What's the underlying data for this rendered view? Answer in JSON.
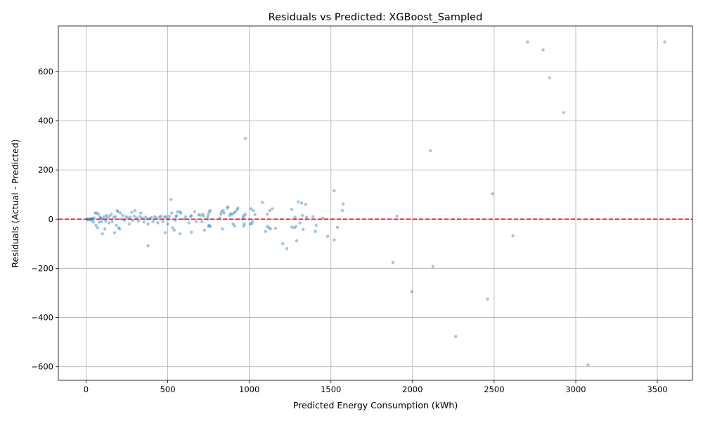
{
  "chart_data": {
    "type": "scatter",
    "title": "Residuals vs Predicted: XGBoost_Sampled",
    "xlabel": "Predicted Energy Consumption (kWh)",
    "ylabel": "Residuals (Actual - Predicted)",
    "xlim": [
      -170,
      3715
    ],
    "ylim": [
      -655,
      785
    ],
    "xticks": [
      0,
      500,
      1000,
      1500,
      2000,
      2500,
      3000,
      3500
    ],
    "yticks": [
      -600,
      -400,
      -200,
      0,
      200,
      400,
      600
    ],
    "xtick_labels": [
      "0",
      "500",
      "1000",
      "1500",
      "2000",
      "2500",
      "3000",
      "3500"
    ],
    "ytick_labels": [
      "−600",
      "−400",
      "−200",
      "0",
      "200",
      "400",
      "600"
    ],
    "grid": true,
    "reference_line": {
      "y": 0,
      "color": "#ff0000",
      "style": "dashed"
    },
    "marker_color": "#1f77b4",
    "points": [
      [
        3545,
        720
      ],
      [
        2705,
        720
      ],
      [
        2800,
        688
      ],
      [
        2840,
        574
      ],
      [
        2925,
        433
      ],
      [
        2110,
        278
      ],
      [
        975,
        328
      ],
      [
        2490,
        103
      ],
      [
        1520,
        115
      ],
      [
        2615,
        -68
      ],
      [
        1905,
        12
      ],
      [
        1575,
        62
      ],
      [
        1570,
        35
      ],
      [
        1880,
        -176
      ],
      [
        2125,
        -193
      ],
      [
        1995,
        -295
      ],
      [
        2460,
        -325
      ],
      [
        2265,
        -477
      ],
      [
        3075,
        -592
      ],
      [
        1480,
        -70
      ],
      [
        1520,
        -85
      ],
      [
        1540,
        -33
      ],
      [
        1290,
        -88
      ],
      [
        1230,
        -120
      ],
      [
        1205,
        -100
      ],
      [
        380,
        -108
      ],
      [
        100,
        -60
      ],
      [
        175,
        -55
      ],
      [
        575,
        -60
      ],
      [
        645,
        -53
      ],
      [
        485,
        -55
      ],
      [
        1300,
        70
      ],
      [
        1320,
        65
      ],
      [
        1345,
        60
      ],
      [
        1325,
        15
      ],
      [
        1275,
        -35
      ],
      [
        1260,
        -32
      ],
      [
        1285,
        -30
      ],
      [
        1310,
        -15
      ],
      [
        1330,
        -42
      ],
      [
        1405,
        -50
      ],
      [
        1410,
        -25
      ],
      [
        1450,
        5
      ],
      [
        1390,
        10
      ],
      [
        1350,
        8
      ],
      [
        1260,
        40
      ],
      [
        1280,
        8
      ],
      [
        1160,
        -38
      ],
      [
        1140,
        42
      ],
      [
        1125,
        35
      ],
      [
        1110,
        20
      ],
      [
        1100,
        -50
      ],
      [
        1080,
        68
      ],
      [
        1110,
        -30
      ],
      [
        1120,
        -35
      ],
      [
        1130,
        -40
      ],
      [
        1035,
        18
      ],
      [
        1025,
        35
      ],
      [
        1010,
        42
      ],
      [
        1015,
        -18
      ],
      [
        1020,
        -10
      ],
      [
        1005,
        -20
      ],
      [
        975,
        20
      ],
      [
        968,
        15
      ],
      [
        962,
        8
      ],
      [
        970,
        -20
      ],
      [
        965,
        -28
      ],
      [
        958,
        0
      ],
      [
        930,
        45
      ],
      [
        925,
        38
      ],
      [
        915,
        30
      ],
      [
        905,
        25
      ],
      [
        900,
        -20
      ],
      [
        910,
        -28
      ],
      [
        895,
        20
      ],
      [
        885,
        22
      ],
      [
        880,
        15
      ],
      [
        870,
        50
      ],
      [
        865,
        45
      ],
      [
        845,
        25
      ],
      [
        840,
        35
      ],
      [
        835,
        -40
      ],
      [
        830,
        30
      ],
      [
        825,
        20
      ],
      [
        820,
        5
      ],
      [
        760,
        35
      ],
      [
        755,
        30
      ],
      [
        750,
        20
      ],
      [
        755,
        -25
      ],
      [
        760,
        -30
      ],
      [
        750,
        -28
      ],
      [
        745,
        0
      ],
      [
        745,
        10
      ],
      [
        715,
        20
      ],
      [
        720,
        12
      ],
      [
        710,
        -10
      ],
      [
        725,
        -45
      ],
      [
        700,
        15
      ],
      [
        690,
        18
      ],
      [
        675,
        -10
      ],
      [
        665,
        30
      ],
      [
        645,
        15
      ],
      [
        640,
        10
      ],
      [
        630,
        -15
      ],
      [
        610,
        10
      ],
      [
        600,
        0
      ],
      [
        580,
        25
      ],
      [
        575,
        30
      ],
      [
        560,
        30
      ],
      [
        555,
        15
      ],
      [
        550,
        10
      ],
      [
        545,
        -5
      ],
      [
        540,
        -45
      ],
      [
        530,
        -35
      ],
      [
        525,
        25
      ],
      [
        520,
        80
      ],
      [
        510,
        12
      ],
      [
        505,
        0
      ],
      [
        500,
        -20
      ],
      [
        490,
        10
      ],
      [
        480,
        8
      ],
      [
        470,
        -10
      ],
      [
        460,
        12
      ],
      [
        450,
        8
      ],
      [
        440,
        -15
      ],
      [
        430,
        5
      ],
      [
        420,
        10
      ],
      [
        410,
        -10
      ],
      [
        400,
        6
      ],
      [
        390,
        3
      ],
      [
        380,
        -20
      ],
      [
        375,
        0
      ],
      [
        365,
        8
      ],
      [
        355,
        -12
      ],
      [
        345,
        5
      ],
      [
        335,
        25
      ],
      [
        330,
        10
      ],
      [
        320,
        -8
      ],
      [
        310,
        5
      ],
      [
        300,
        35
      ],
      [
        295,
        12
      ],
      [
        285,
        -5
      ],
      [
        280,
        28
      ],
      [
        270,
        8
      ],
      [
        265,
        -20
      ],
      [
        255,
        5
      ],
      [
        245,
        10
      ],
      [
        235,
        -5
      ],
      [
        225,
        15
      ],
      [
        215,
        0
      ],
      [
        210,
        25
      ],
      [
        205,
        -40
      ],
      [
        200,
        -35
      ],
      [
        195,
        30
      ],
      [
        190,
        35
      ],
      [
        185,
        -25
      ],
      [
        180,
        10
      ],
      [
        170,
        8
      ],
      [
        160,
        -10
      ],
      [
        155,
        20
      ],
      [
        145,
        12
      ],
      [
        140,
        -15
      ],
      [
        130,
        5
      ],
      [
        125,
        15
      ],
      [
        120,
        -8
      ],
      [
        115,
        -40
      ],
      [
        110,
        10
      ],
      [
        100,
        2
      ],
      [
        95,
        -10
      ],
      [
        90,
        5
      ],
      [
        85,
        8
      ],
      [
        80,
        -12
      ],
      [
        75,
        20
      ],
      [
        70,
        -35
      ],
      [
        65,
        25
      ],
      [
        60,
        -25
      ],
      [
        55,
        25
      ],
      [
        50,
        5
      ],
      [
        45,
        -12
      ],
      [
        40,
        3
      ],
      [
        35,
        -5
      ],
      [
        30,
        2
      ],
      [
        25,
        0
      ],
      [
        20,
        -3
      ],
      [
        15,
        1
      ],
      [
        10,
        -2
      ],
      [
        5,
        0
      ]
    ]
  }
}
